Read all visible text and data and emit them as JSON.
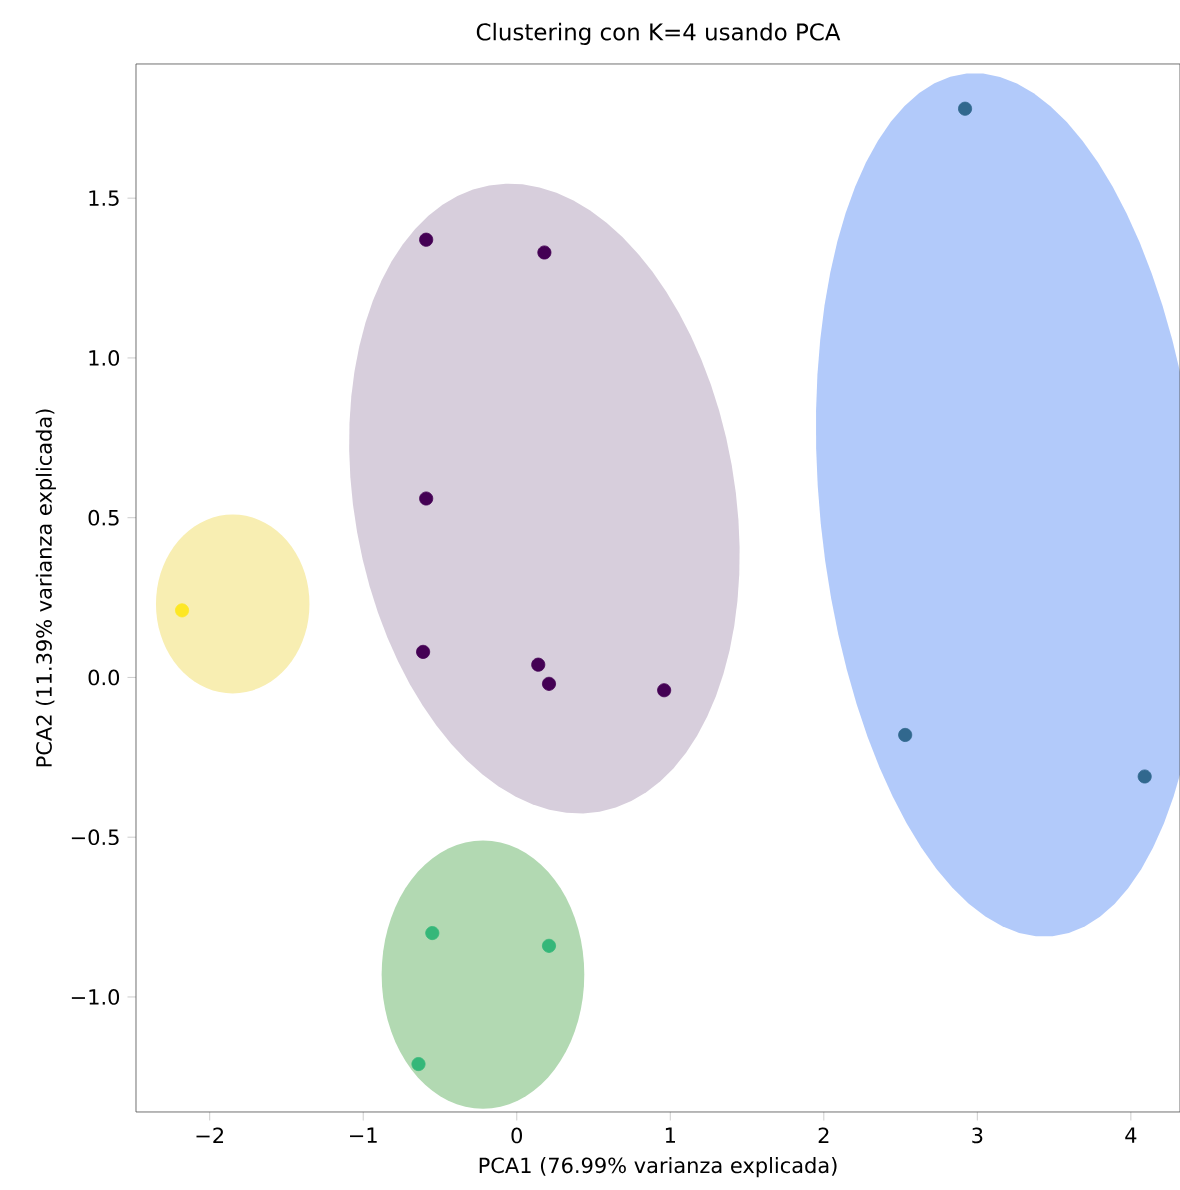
{
  "chart_data": {
    "type": "scatter",
    "title": "Clustering con K=4 usando PCA",
    "xlabel": "PCA1 (76.99% varianza explicada)",
    "ylabel": "PCA2 (11.39% varianza explicada)",
    "xlim": [
      -2.48,
      4.32
    ],
    "ylim": [
      -1.36,
      1.92
    ],
    "xticks": [
      {
        "value": -2,
        "label": "−2"
      },
      {
        "value": -1,
        "label": "−1"
      },
      0,
      1,
      2,
      3,
      4
    ],
    "yticks": [
      {
        "value": -1,
        "label": "−1.0"
      },
      {
        "value": -0.5,
        "label": "−0.5"
      },
      {
        "value": 0,
        "label": "0.0"
      },
      0.5,
      {
        "value": 1,
        "label": "1.0"
      },
      1.5
    ],
    "grid": false,
    "series": [
      {
        "color": "#440154",
        "x": [
          -0.59,
          0.18,
          -0.59,
          -0.61,
          0.14,
          0.21,
          0.96
        ],
        "values": [
          1.37,
          1.33,
          0.56,
          0.08,
          0.04,
          -0.02,
          -0.04
        ]
      },
      {
        "color": "#31688e",
        "x": [
          2.92,
          2.53,
          4.09
        ],
        "values": [
          1.78,
          -0.18,
          -0.31
        ]
      },
      {
        "color": "#35b779",
        "x": [
          -0.55,
          0.21,
          -0.64
        ],
        "values": [
          -0.8,
          -0.84,
          -1.21
        ]
      },
      {
        "color": "#fde725",
        "x": [
          -2.18
        ],
        "values": [
          0.21
        ]
      }
    ]
  }
}
